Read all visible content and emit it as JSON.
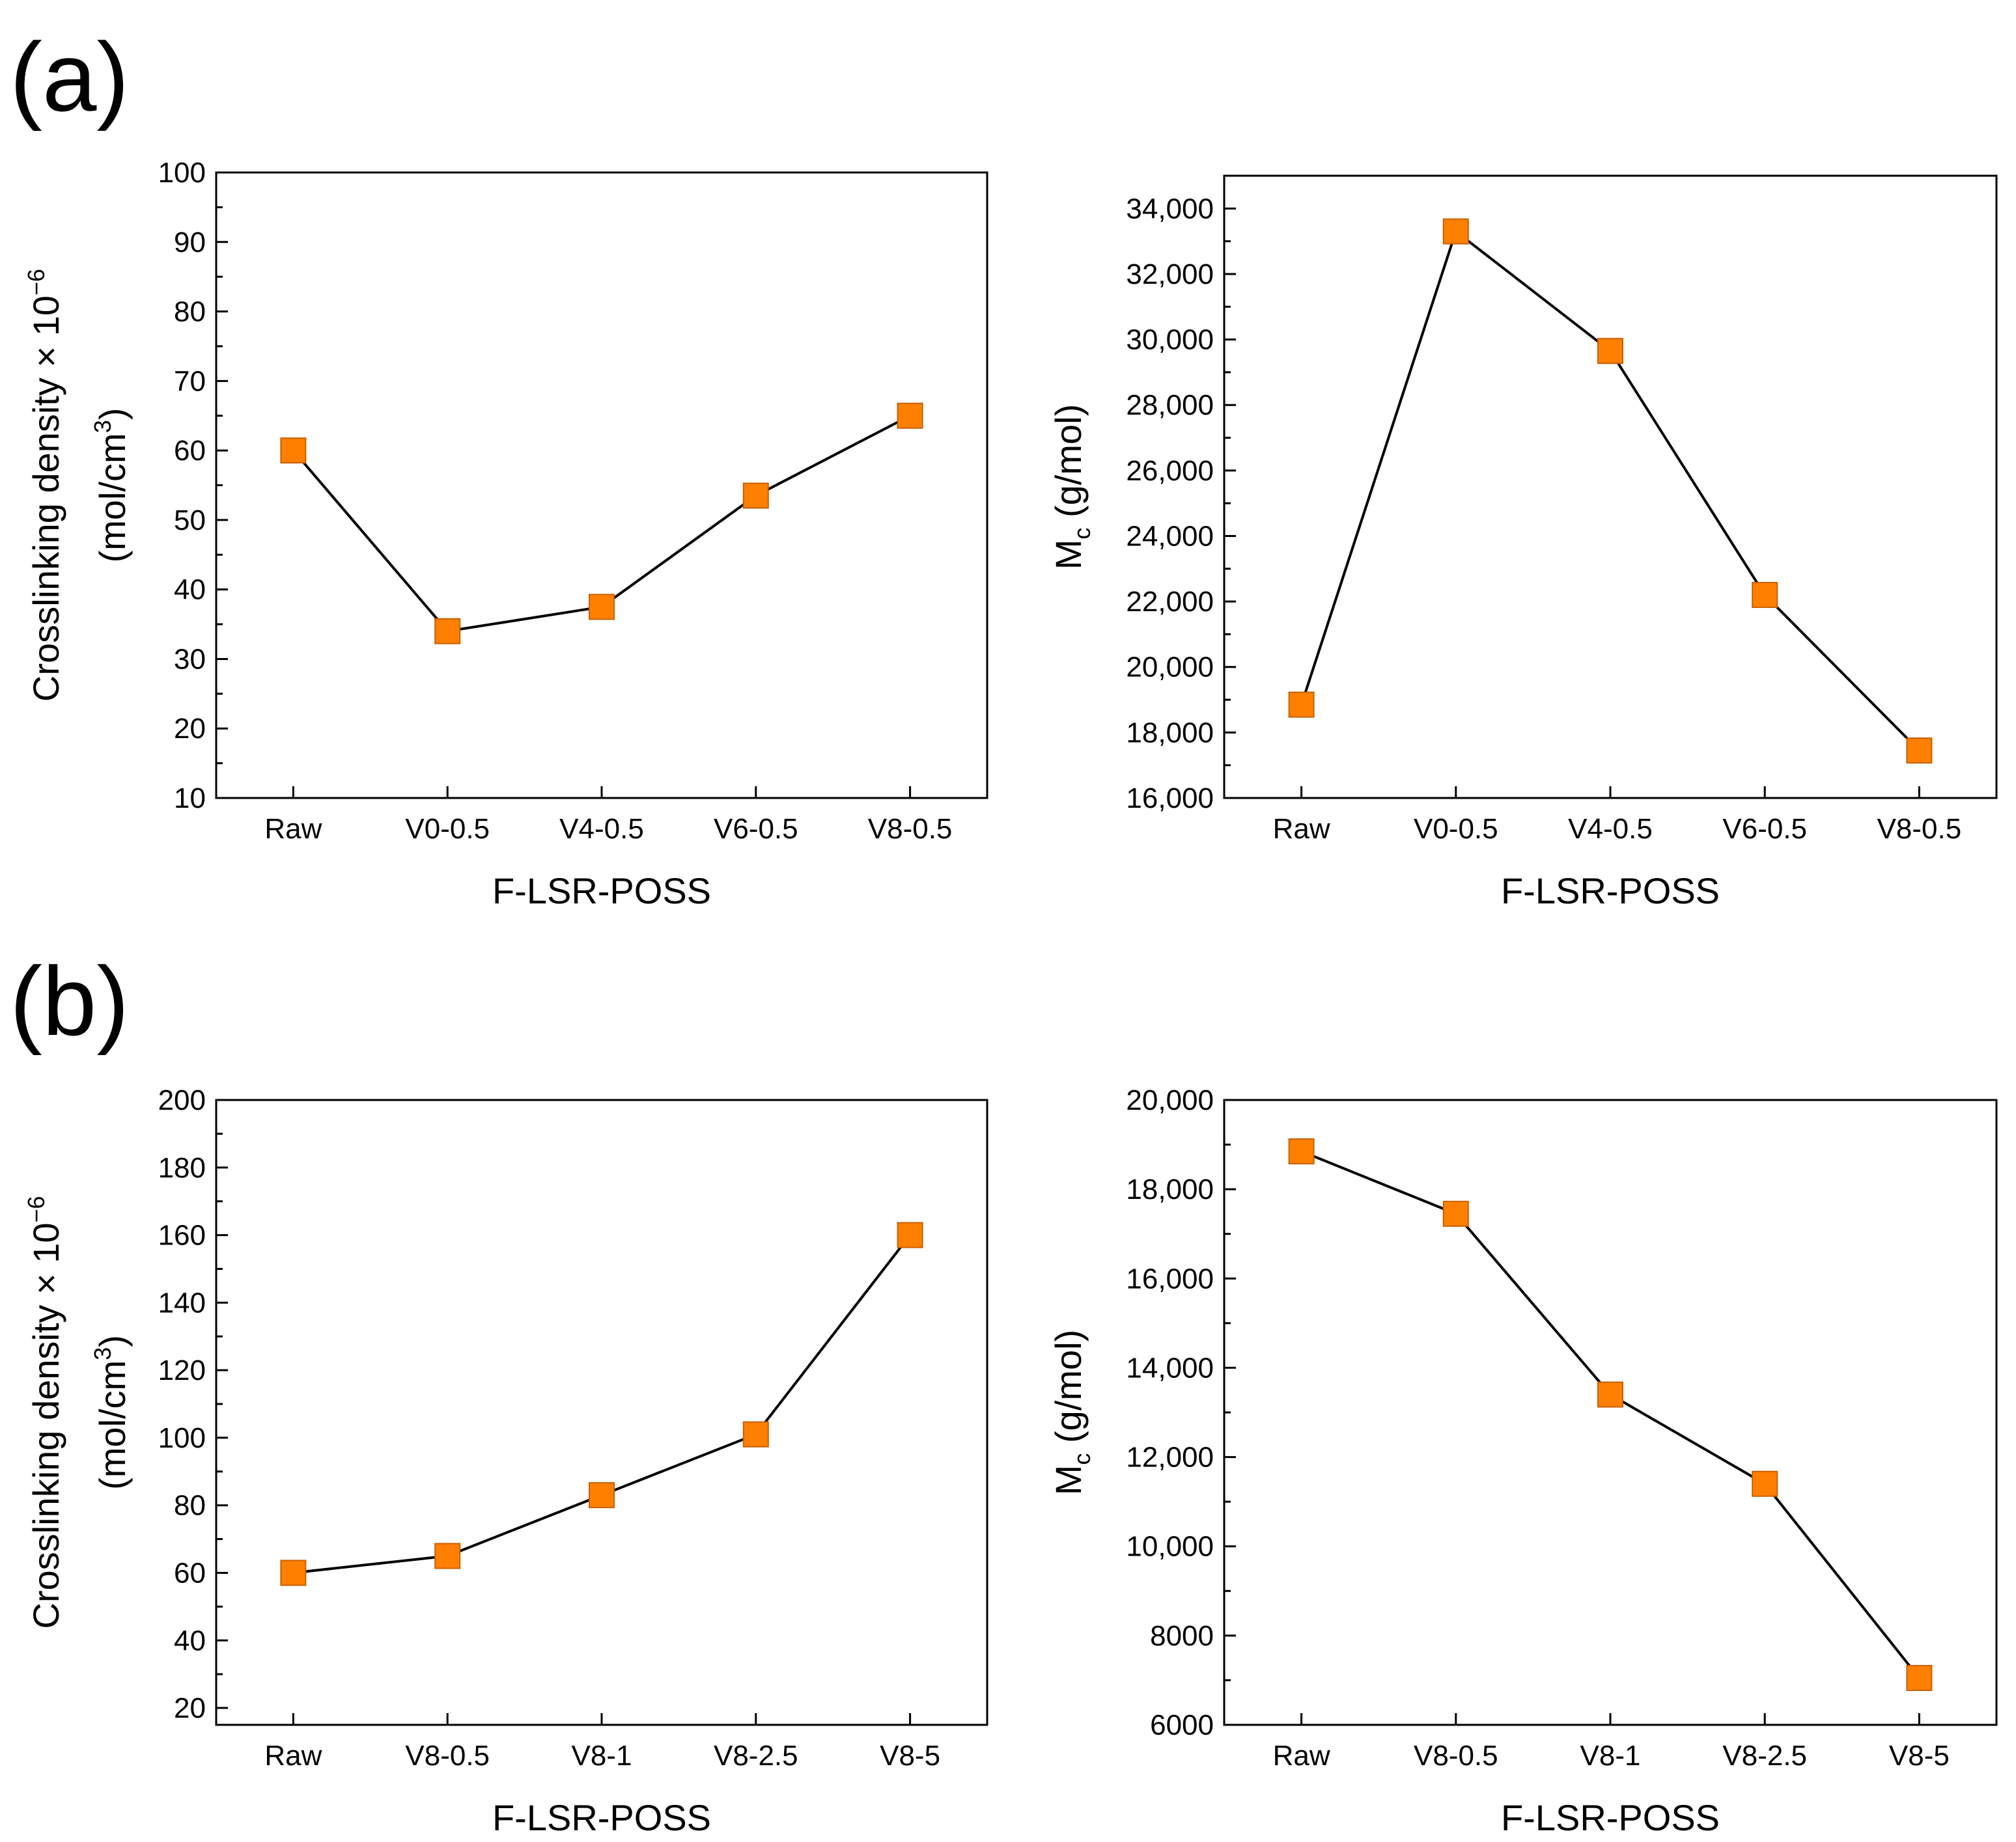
{
  "panel_labels": [
    "(a)",
    "(b)"
  ],
  "chart_data": [
    {
      "type": "line",
      "panel": "(a)",
      "categories": [
        "Raw",
        "V0-0.5",
        "V4-0.5",
        "V6-0.5",
        "V8-0.5"
      ],
      "values": [
        60,
        34,
        37.5,
        53.5,
        65
      ],
      "xlabel": "F-LSR-POSS",
      "ylabel_line1": "Crosslinking density × 10",
      "ylabel_line1_sup": "−6",
      "ylabel_line2": "(mol/cm",
      "ylabel_line2_sup": "3",
      "ylabel_line2_end": ")",
      "ylim": [
        10,
        100
      ],
      "yticks": [
        10,
        20,
        30,
        40,
        50,
        60,
        70,
        80,
        90,
        100
      ],
      "ytick_labels": [
        "10",
        "20",
        "30",
        "40",
        "50",
        "60",
        "70",
        "80",
        "90",
        "100"
      ],
      "marker_color": "#ff8000",
      "line_color": "#000000"
    },
    {
      "type": "line",
      "panel": "(a)",
      "categories": [
        "Raw",
        "V0-0.5",
        "V4-0.5",
        "V6-0.5",
        "V8-0.5"
      ],
      "values": [
        18850,
        33300,
        29650,
        22200,
        17450
      ],
      "xlabel": "F-LSR-POSS",
      "ylabel_main": "M",
      "ylabel_sub": "c",
      "ylabel_unit": " (g/mol)",
      "ylim": [
        16000,
        35000
      ],
      "yticks": [
        16000,
        18000,
        20000,
        22000,
        24000,
        26000,
        28000,
        30000,
        32000,
        34000
      ],
      "ytick_labels": [
        "16,000",
        "18,000",
        "20,000",
        "22,000",
        "24,000",
        "26,000",
        "28,000",
        "30,000",
        "32,000",
        "34,000"
      ],
      "marker_color": "#ff8000",
      "line_color": "#000000"
    },
    {
      "type": "line",
      "panel": "(b)",
      "categories": [
        "Raw",
        "V8-0.5",
        "V8-1",
        "V8-2.5",
        "V8-5"
      ],
      "values": [
        60,
        65,
        83,
        101,
        160
      ],
      "xlabel": "F-LSR-POSS",
      "ylabel_line1": "Crosslinking density × 10",
      "ylabel_line1_sup": "−6",
      "ylabel_line2": "(mol/cm",
      "ylabel_line2_sup": "3",
      "ylabel_line2_end": ")",
      "ylim": [
        15,
        200
      ],
      "yticks": [
        20,
        40,
        60,
        80,
        100,
        120,
        140,
        160,
        180,
        200
      ],
      "ytick_labels": [
        "20",
        "40",
        "60",
        "80",
        "100",
        "120",
        "140",
        "160",
        "180",
        "200"
      ],
      "marker_color": "#ff8000",
      "line_color": "#000000"
    },
    {
      "type": "line",
      "panel": "(b)",
      "categories": [
        "Raw",
        "V8-0.5",
        "V8-1",
        "V8-2.5",
        "V8-5"
      ],
      "values": [
        18850,
        17450,
        13400,
        11400,
        7050
      ],
      "xlabel": "F-LSR-POSS",
      "ylabel_main": "M",
      "ylabel_sub": "c",
      "ylabel_unit": " (g/mol)",
      "ylim": [
        6000,
        20000
      ],
      "yticks": [
        6000,
        8000,
        10000,
        12000,
        14000,
        16000,
        18000,
        20000
      ],
      "ytick_labels": [
        "6000",
        "8000",
        "10,000",
        "12,000",
        "14,000",
        "16,000",
        "18,000",
        "20,000"
      ],
      "marker_color": "#ff8000",
      "line_color": "#000000"
    }
  ]
}
